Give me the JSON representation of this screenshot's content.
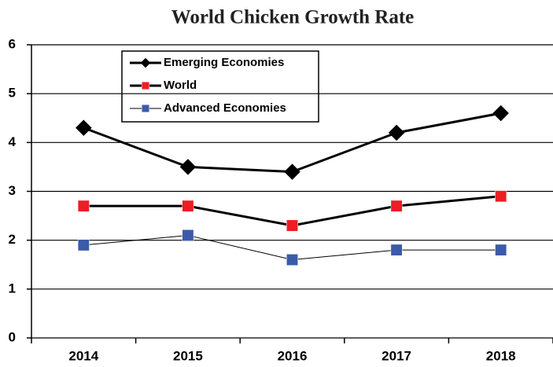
{
  "chart_data": {
    "type": "line",
    "title": "World Chicken Growth Rate",
    "categories": [
      "2014",
      "2015",
      "2016",
      "2017",
      "2018"
    ],
    "series": [
      {
        "name": "Emerging Economies",
        "color": "#000000",
        "marker": "diamond",
        "line_width": 3,
        "values": [
          4.3,
          3.5,
          3.4,
          4.2,
          4.6
        ]
      },
      {
        "name": "World",
        "color": "#ee1c24",
        "line_color": "#000000",
        "marker": "square",
        "line_width": 3,
        "values": [
          2.7,
          2.7,
          2.3,
          2.7,
          2.9
        ]
      },
      {
        "name": "Advanced Economies",
        "color": "#3b5ba9",
        "line_color": "#000000",
        "marker": "square",
        "line_width": 1,
        "values": [
          1.9,
          2.1,
          1.6,
          1.8,
          1.8
        ]
      }
    ],
    "ylim": [
      0,
      6
    ],
    "yticks": [
      0,
      1,
      2,
      3,
      4,
      5,
      6
    ],
    "grid": true,
    "legend": "upper left"
  }
}
